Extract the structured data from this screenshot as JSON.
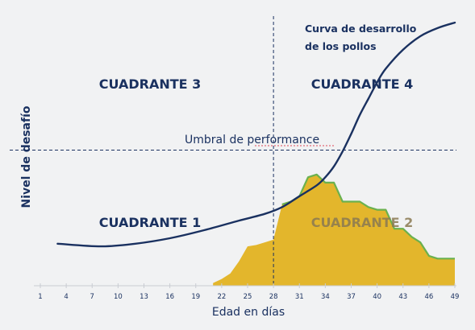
{
  "chart_data": {
    "type": "line",
    "xlabel": "Edad en días",
    "ylabel": "Nivel de desafío",
    "x_ticks": [
      1,
      4,
      7,
      10,
      13,
      16,
      19,
      22,
      25,
      28,
      31,
      34,
      37,
      40,
      43,
      46,
      49
    ],
    "xlim": [
      1,
      49
    ],
    "ylim": [
      0,
      100
    ],
    "threshold": {
      "label": "Umbral de performance",
      "y": 50
    },
    "vertical_divider": {
      "x": 28
    },
    "quadrants": [
      {
        "label": "CUADRANTE 3"
      },
      {
        "label": "CUADRANTE 4"
      },
      {
        "label": "CUADRANTE 1"
      },
      {
        "label": "CUADRANTE 2"
      }
    ],
    "series": [
      {
        "name": "Curva de desarrollo de los pollos",
        "x": [
          3,
          8,
          12,
          16,
          20,
          24,
          27,
          29,
          31,
          33,
          34,
          35,
          36,
          37,
          38,
          39,
          40,
          41,
          43,
          45,
          47,
          49
        ],
        "y": [
          15.5,
          14.5,
          15.5,
          17.5,
          20.5,
          24,
          26.5,
          29,
          33,
          37,
          40,
          44,
          49.5,
          56,
          63,
          69,
          75,
          80,
          87,
          92,
          95,
          97
        ]
      },
      {
        "x": [
          21,
          22,
          23,
          24,
          25,
          26,
          27,
          28,
          29,
          30,
          31,
          32,
          33,
          34,
          35,
          36,
          37,
          38,
          39,
          40,
          41,
          42,
          43,
          44,
          45,
          46,
          47,
          48,
          49
        ],
        "y": [
          1,
          2.5,
          4.5,
          9,
          14.5,
          15,
          16,
          17,
          30,
          31,
          33,
          40,
          41,
          38,
          38,
          31,
          31,
          31,
          29,
          28,
          28,
          21,
          21,
          18,
          16,
          11,
          10,
          10,
          10
        ]
      }
    ],
    "colors": {
      "curve": "#1a3160",
      "fill": "#e3b62c",
      "fill_edge": "#6bb14e",
      "grid": "#1a3160",
      "text": "#1a3160",
      "background": "#f1f2f3"
    }
  }
}
